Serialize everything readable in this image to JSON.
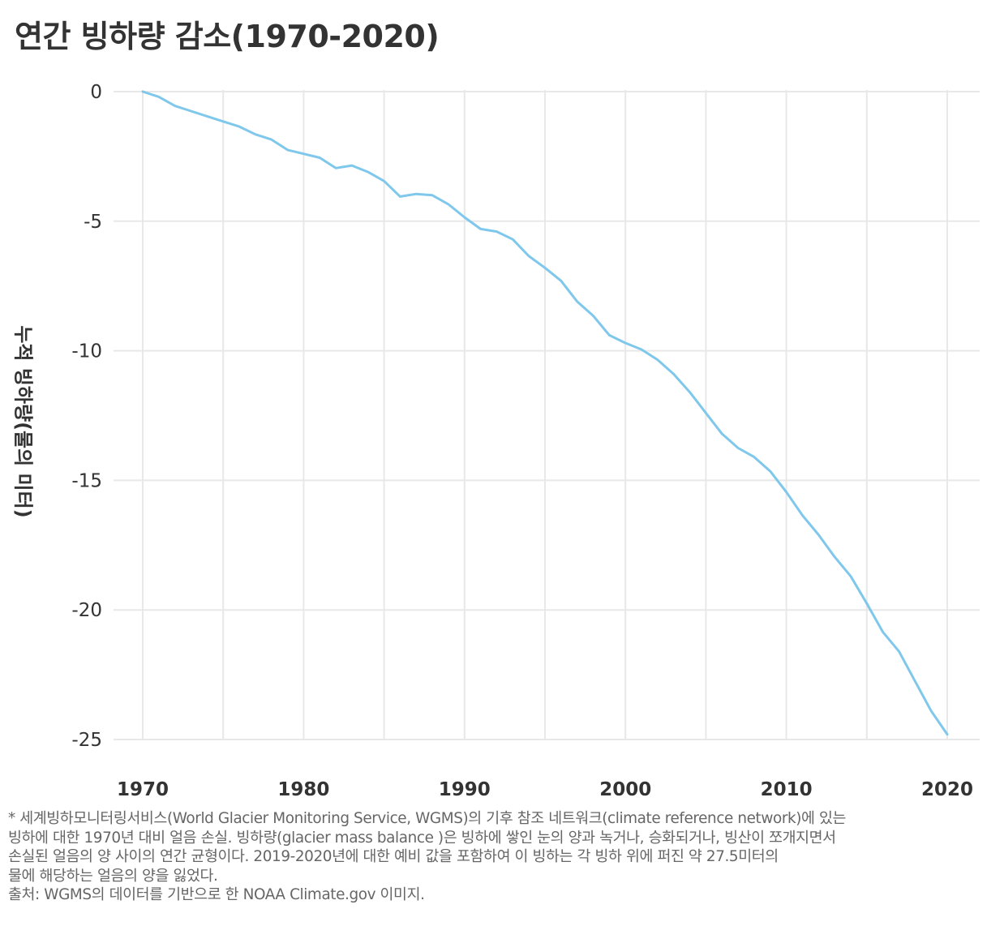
{
  "chart_data": {
    "type": "line",
    "title": "연간 빙하량 감소(1970-2020)",
    "ylabel": "누적 빙하량(물의 미터)",
    "xlabel": "",
    "xlim": [
      1970,
      2020
    ],
    "ylim": [
      -25,
      0
    ],
    "grid": true,
    "x_ticks": [
      "1970",
      "1980",
      "1990",
      "2000",
      "2010",
      "2020"
    ],
    "y_ticks": [
      "0",
      "-5",
      "-10",
      "-15",
      "-20",
      "-25"
    ],
    "line_color": "#7fc8ec",
    "series": [
      {
        "x": [
          1970,
          1971,
          1972,
          1973,
          1974,
          1975,
          1976,
          1977,
          1978,
          1979,
          1980,
          1981,
          1982,
          1983,
          1984,
          1985,
          1986,
          1987,
          1988,
          1989,
          1990,
          1991,
          1992,
          1993,
          1994,
          1995,
          1996,
          1997,
          1998,
          1999,
          2000,
          2001,
          2002,
          2003,
          2004,
          2005,
          2006,
          2007,
          2008,
          2009,
          2010,
          2011,
          2012,
          2013,
          2014,
          2015,
          2016,
          2017,
          2018,
          2019,
          2020
        ],
        "y": [
          0,
          -0.2,
          -0.55,
          -0.75,
          -0.95,
          -1.15,
          -1.35,
          -1.65,
          -1.85,
          -2.25,
          -2.4,
          -2.55,
          -2.95,
          -2.85,
          -3.1,
          -3.45,
          -4.05,
          -3.95,
          -4.0,
          -4.35,
          -4.85,
          -5.3,
          -5.4,
          -5.7,
          -6.35,
          -6.8,
          -7.3,
          -8.1,
          -8.65,
          -9.4,
          -9.7,
          -9.95,
          -10.35,
          -10.9,
          -11.6,
          -12.4,
          -13.2,
          -13.75,
          -14.1,
          -14.65,
          -15.45,
          -16.35,
          -17.1,
          -17.95,
          -18.7,
          -19.75,
          -20.85,
          -21.6,
          -22.75,
          -23.9,
          -24.8
        ]
      }
    ]
  },
  "footnote": [
    "* 세계빙하모니터링서비스(World Glacier Monitoring Service, WGMS)의 기후 참조 네트워크(climate reference network)에 있는",
    "빙하에 대한 1970년 대비 얼음 손실. 빙하량(glacier mass balance )은 빙하에 쌓인 눈의 양과 녹거나, 승화되거나, 빙산이 쪼개지면서",
    "손실된 얼음의 양 사이의 연간 균형이다. 2019-2020년에 대한 예비 값을 포함하여 이 빙하는 각 빙하 위에 퍼진 약 27.5미터의",
    "물에 해당하는 얼음의 양을 잃었다.",
    "출처: WGMS의 데이터를 기반으로 한 NOAA Climate.gov 이미지."
  ]
}
